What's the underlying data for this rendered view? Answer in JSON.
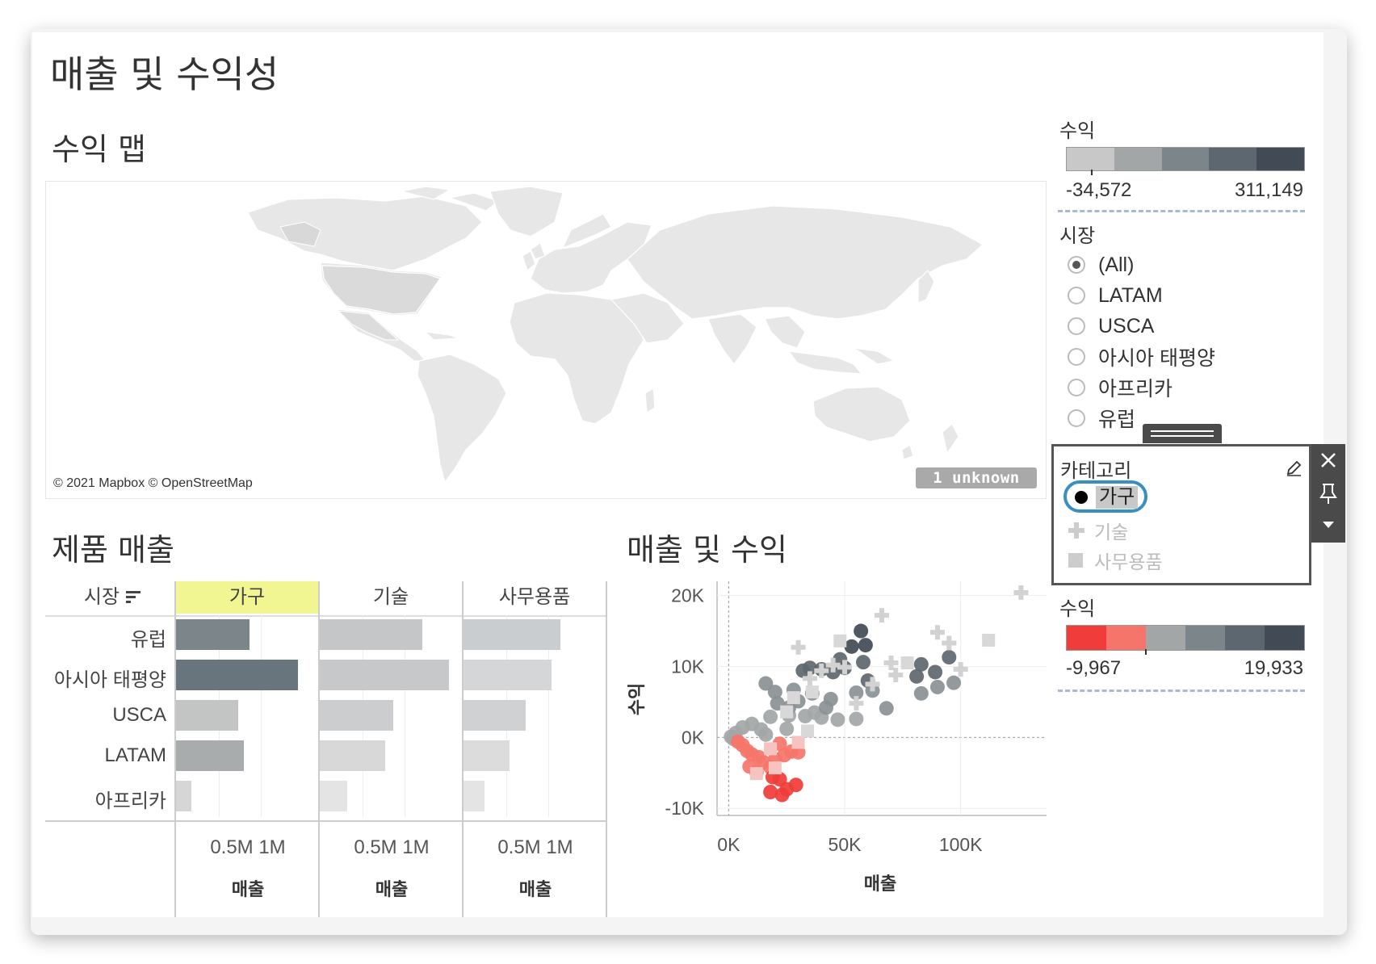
{
  "dashboard": {
    "title": "매출 및 수익성",
    "map_section_title": "수익 맵",
    "map_credit": "© 2021 Mapbox © OpenStreetMap",
    "map_unknown_badge": "1 unknown",
    "product_section_title": "제품 매출",
    "scatter_section_title": "매출 및 수익"
  },
  "profit_legend_top": {
    "title": "수익",
    "min_label": "-34,572",
    "max_label": "311,149",
    "colors": [
      "#c8c8c8",
      "#a3a6a7",
      "#7c858a",
      "#5d676f",
      "#414a55"
    ]
  },
  "market_filter": {
    "title": "시장",
    "options": [
      {
        "label": "(All)",
        "selected": true
      },
      {
        "label": "LATAM",
        "selected": false
      },
      {
        "label": "USCA",
        "selected": false
      },
      {
        "label": "아시아 태평양",
        "selected": false
      },
      {
        "label": "아프리카",
        "selected": false
      },
      {
        "label": "유럽",
        "selected": false
      }
    ]
  },
  "category_legend": {
    "title": "카테고리",
    "items": [
      {
        "label": "가구",
        "shape": "circle",
        "active": true
      },
      {
        "label": "기술",
        "shape": "plus",
        "active": false
      },
      {
        "label": "사무용품",
        "shape": "square",
        "active": false
      }
    ],
    "toolbar": {
      "close_icon": "close-icon",
      "pin_icon": "pin-icon",
      "menu_icon": "dropdown-icon",
      "edit_icon": "pencil-icon"
    }
  },
  "profit_legend_bottom": {
    "title": "수익",
    "min_label": "-9,967",
    "max_label": "19,933",
    "colors": [
      "#f03c3a",
      "#f6756a",
      "#a3a6a7",
      "#7c858a",
      "#5d676f",
      "#414a55"
    ]
  },
  "product_sales": {
    "row_header": "시장",
    "sort_icon": "sort-icon",
    "columns": [
      "가구",
      "기술",
      "사무용품"
    ],
    "highlight_column": "가구",
    "rows": [
      "유럽",
      "아시아 태평양",
      "USCA",
      "LATAM",
      "아프리카"
    ],
    "axis_tick_label": "0.5M 1M",
    "axis_title": "매출",
    "chart_data": {
      "type": "bar",
      "categories": [
        "유럽",
        "아시아 태평양",
        "USCA",
        "LATAM",
        "아프리카"
      ],
      "series": [
        {
          "name": "가구",
          "values": [
            0.87,
            1.44,
            0.73,
            0.8,
            0.18
          ]
        },
        {
          "name": "기술",
          "values": [
            1.21,
            1.52,
            0.87,
            0.77,
            0.32
          ]
        },
        {
          "name": "사무용품",
          "values": [
            1.14,
            1.04,
            0.73,
            0.54,
            0.25
          ]
        }
      ],
      "xlim": [
        0,
        1.6
      ],
      "x_ticks": [
        "0.5M",
        "1M"
      ],
      "xlabel": "매출",
      "ylabel": "시장"
    }
  },
  "sales_profit": {
    "chart_data": {
      "type": "scatter",
      "xlabel": "매출",
      "ylabel": "수익",
      "x_ticks": [
        "0K",
        "50K",
        "100K"
      ],
      "y_ticks": [
        "20K",
        "10K",
        "0K",
        "-10K"
      ],
      "xlim": [
        -5000,
        137000
      ],
      "ylim": [
        -11000,
        22000
      ],
      "series": [
        {
          "name": "가구",
          "shape": "circle",
          "points": [
            [
              57000,
              15000
            ],
            [
              59000,
              13000
            ],
            [
              53000,
              12800
            ],
            [
              48000,
              11000
            ],
            [
              50000,
              9800
            ],
            [
              58000,
              10600
            ],
            [
              45000,
              9200
            ],
            [
              40000,
              9600
            ],
            [
              35000,
              9800
            ],
            [
              32000,
              9400
            ],
            [
              16000,
              7600
            ],
            [
              28000,
              6700
            ],
            [
              20000,
              6400
            ],
            [
              60000,
              8000
            ],
            [
              55000,
              6300
            ],
            [
              62000,
              6600
            ],
            [
              68000,
              4100
            ],
            [
              55000,
              2600
            ],
            [
              47000,
              2500
            ],
            [
              40000,
              2800
            ],
            [
              33000,
              3000
            ],
            [
              26000,
              3100
            ],
            [
              18000,
              2900
            ],
            [
              10000,
              1900
            ],
            [
              6000,
              1400
            ],
            [
              3000,
              600
            ],
            [
              1000,
              100
            ],
            [
              2000,
              -200
            ],
            [
              4000,
              -600
            ],
            [
              6000,
              -1100
            ],
            [
              8000,
              -1900
            ],
            [
              10000,
              -2400
            ],
            [
              13000,
              -2800
            ],
            [
              15000,
              -3500
            ],
            [
              18000,
              -4200
            ],
            [
              20000,
              -3100
            ],
            [
              24000,
              -2500
            ],
            [
              27000,
              -2000
            ],
            [
              30000,
              -2100
            ],
            [
              19000,
              -5600
            ],
            [
              22000,
              -5900
            ],
            [
              25000,
              -7300
            ],
            [
              29000,
              -6700
            ],
            [
              18000,
              -7700
            ],
            [
              23000,
              -8100
            ],
            [
              12000,
              -4900
            ],
            [
              9000,
              -4100
            ],
            [
              83000,
              10300
            ],
            [
              89000,
              9200
            ],
            [
              95000,
              11300
            ],
            [
              81000,
              8600
            ],
            [
              97000,
              7700
            ],
            [
              83000,
              6200
            ],
            [
              90000,
              7100
            ],
            [
              14000,
              1100
            ],
            [
              16000,
              400
            ],
            [
              22000,
              -900
            ],
            [
              25000,
              1200
            ],
            [
              37000,
              3500
            ],
            [
              42000,
              4200
            ],
            [
              44000,
              5400
            ],
            [
              30000,
              5100
            ],
            [
              36000,
              6200
            ],
            [
              26000,
              4200
            ],
            [
              21000,
              4800
            ]
          ]
        },
        {
          "name": "기술",
          "shape": "plus",
          "points": [
            [
              126000,
              20400
            ],
            [
              66000,
              17200
            ],
            [
              90000,
              14800
            ],
            [
              95000,
              13300
            ],
            [
              30000,
              12700
            ],
            [
              100000,
              9600
            ],
            [
              70000,
              10500
            ],
            [
              72000,
              8800
            ],
            [
              40000,
              9400
            ],
            [
              45000,
              10200
            ],
            [
              50000,
              9900
            ],
            [
              62000,
              7500
            ],
            [
              35000,
              8300
            ],
            [
              55000,
              4800
            ]
          ]
        },
        {
          "name": "사무용품",
          "shape": "square",
          "points": [
            [
              112000,
              13700
            ],
            [
              48000,
              13600
            ],
            [
              77000,
              10500
            ],
            [
              36000,
              6400
            ],
            [
              28000,
              5600
            ],
            [
              25000,
              3600
            ],
            [
              18000,
              -1600
            ],
            [
              20000,
              -4300
            ],
            [
              12000,
              -5100
            ],
            [
              30000,
              -700
            ],
            [
              34000,
              900
            ]
          ]
        }
      ]
    }
  }
}
